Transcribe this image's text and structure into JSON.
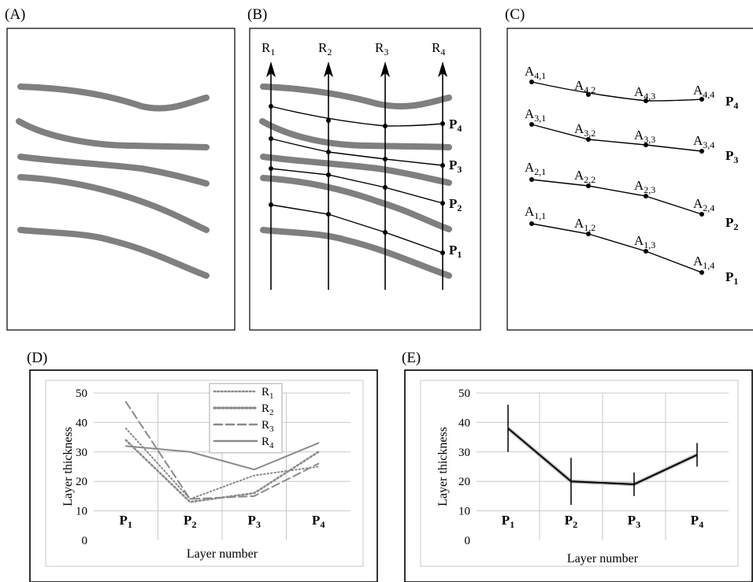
{
  "panels": {
    "a": {
      "label": "(A)"
    },
    "b": {
      "label": "(B)",
      "rays": [
        "R1",
        "R2",
        "R3",
        "R4"
      ],
      "layers": [
        "P4",
        "P3",
        "P2",
        "P1"
      ]
    },
    "c": {
      "label": "(C)",
      "layers": [
        "P4",
        "P3",
        "P2",
        "P1"
      ],
      "points": [
        [
          "A4,1",
          "A4,2",
          "A4,3",
          "A4,4"
        ],
        [
          "A3,1",
          "A3,2",
          "A3,3",
          "A3,4"
        ],
        [
          "A2,1",
          "A2,2",
          "A2,3",
          "A2,4"
        ],
        [
          "A1,1",
          "A1,2",
          "A1,3",
          "A1,4"
        ]
      ]
    },
    "d": {
      "label": "(D)"
    },
    "e": {
      "label": "(E)"
    }
  },
  "chart_data": [
    {
      "panel": "D",
      "type": "line",
      "categories": [
        "P1",
        "P2",
        "P3",
        "P4"
      ],
      "series": [
        {
          "name": "R1",
          "values": [
            38,
            14,
            22,
            25
          ],
          "style": "dotted"
        },
        {
          "name": "R2",
          "values": [
            34,
            13,
            16,
            30
          ],
          "style": "dotted-thick"
        },
        {
          "name": "R3",
          "values": [
            47,
            14,
            15,
            26
          ],
          "style": "dashed"
        },
        {
          "name": "R4",
          "values": [
            32,
            30,
            24,
            33
          ],
          "style": "solid"
        }
      ],
      "ylabel": "Layer thickness",
      "xlabel": "Layer number",
      "ylim": [
        0,
        50
      ],
      "yticks": [
        0,
        10,
        20,
        30,
        40,
        50
      ],
      "grid": true,
      "legend": "top-center",
      "series_color": "#8a8a8a"
    },
    {
      "panel": "E",
      "type": "line",
      "categories": [
        "P1",
        "P2",
        "P3",
        "P4"
      ],
      "values": [
        38,
        20,
        19,
        29
      ],
      "error": [
        8,
        8,
        4,
        4
      ],
      "ylabel": "Layer thickness",
      "xlabel": "Layer number",
      "ylim": [
        0,
        50
      ],
      "yticks": [
        0,
        10,
        20,
        30,
        40,
        50
      ],
      "grid": true
    }
  ],
  "colors": {
    "stroke": "#7f7f7f",
    "line": "#000000",
    "grid": "#c8c8c8",
    "chart_series": "#8a8a8a"
  }
}
